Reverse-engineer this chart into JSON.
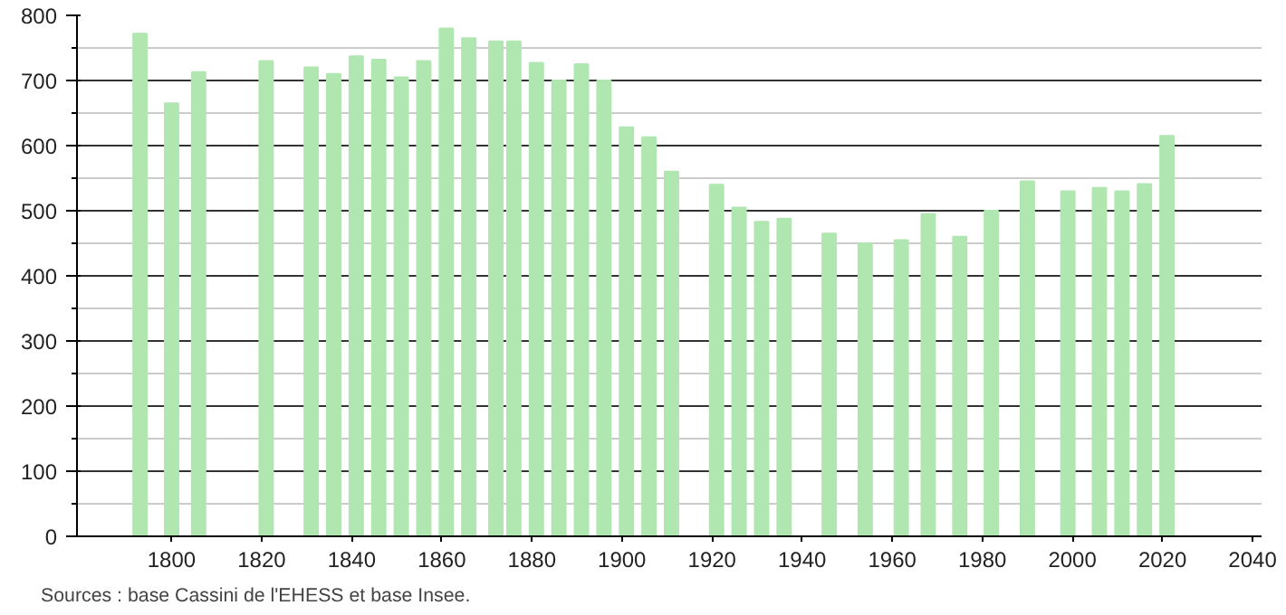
{
  "chart_data": {
    "type": "bar",
    "x": [
      1793,
      1800,
      1806,
      1821,
      1831,
      1836,
      1841,
      1846,
      1851,
      1856,
      1861,
      1866,
      1872,
      1876,
      1881,
      1886,
      1891,
      1896,
      1901,
      1906,
      1911,
      1921,
      1926,
      1931,
      1936,
      1946,
      1954,
      1962,
      1968,
      1975,
      1982,
      1990,
      1999,
      2006,
      2011,
      2016,
      2021
    ],
    "values": [
      772,
      665,
      713,
      730,
      720,
      710,
      737,
      732,
      705,
      730,
      780,
      765,
      760,
      760,
      727,
      700,
      725,
      700,
      628,
      613,
      560,
      540,
      505,
      483,
      488,
      465,
      450,
      455,
      495,
      460,
      500,
      545,
      530,
      535,
      530,
      541,
      615
    ],
    "color": "#b0e6b0",
    "xlim": [
      1779,
      2042
    ],
    "xticks": [
      1800,
      1820,
      1840,
      1860,
      1880,
      1900,
      1920,
      1940,
      1960,
      1980,
      2000,
      2020,
      2040
    ],
    "ylim": [
      0,
      800
    ],
    "yticks": [
      0,
      100,
      200,
      300,
      400,
      500,
      600,
      700,
      800
    ],
    "grid": "y",
    "annotations": [
      "Sources : base Cassini de l'EHESS et base Insee."
    ]
  }
}
